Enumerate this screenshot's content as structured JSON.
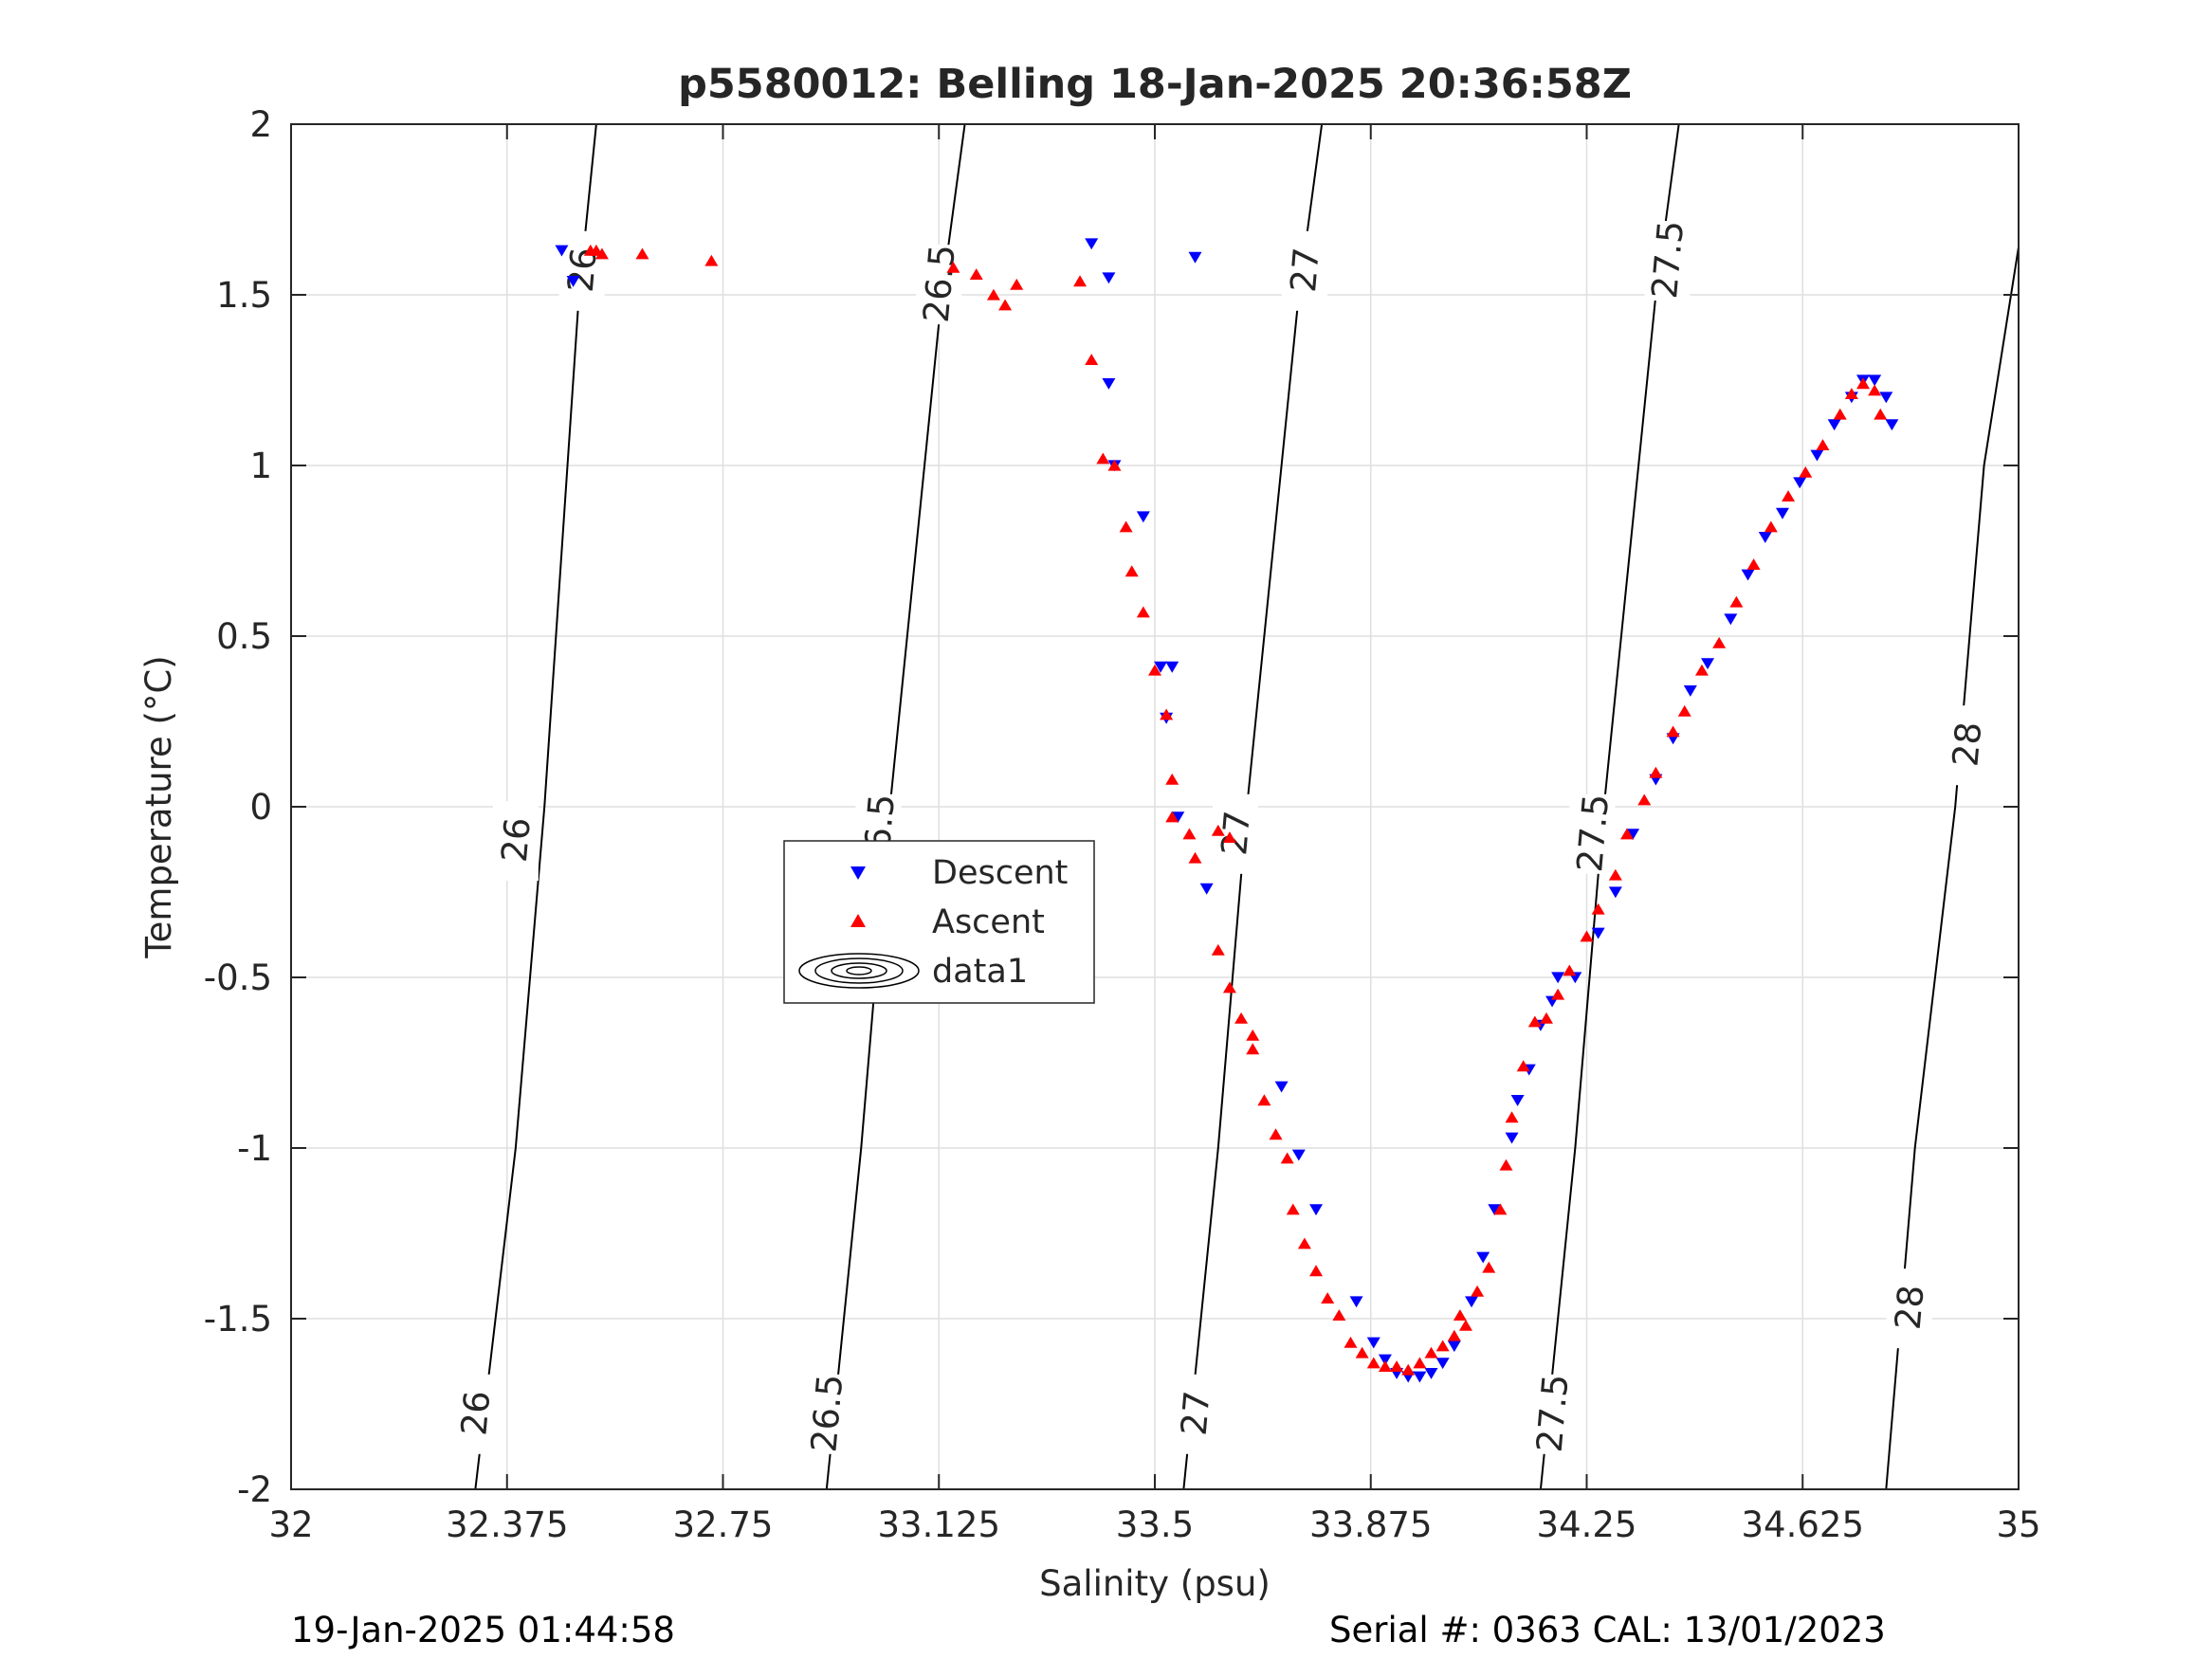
{
  "chart_data": {
    "type": "scatter",
    "title": "p5580012: Belling 18-Jan-2025 20:36:58Z",
    "xlabel": "Salinity (psu)",
    "ylabel": "Temperature (°C)",
    "xlim": [
      32,
      35
    ],
    "ylim": [
      -2,
      2
    ],
    "grid": true,
    "x_ticks": [
      32,
      32.375,
      32.75,
      33.125,
      33.5,
      33.875,
      34.25,
      34.625,
      35
    ],
    "x_tick_labels": [
      "32",
      "32.375",
      "32.75",
      "33.125",
      "33.5",
      "33.875",
      "34.25",
      "34.625",
      "35"
    ],
    "y_ticks": [
      -2,
      -1.5,
      -1,
      -0.5,
      0,
      0.5,
      1,
      1.5,
      2
    ],
    "y_tick_labels": [
      "-2",
      "-1.5",
      "-1",
      "-0.5",
      "0",
      "0.5",
      "1",
      "1.5",
      "2"
    ],
    "legend": {
      "placement": "center-left",
      "entries": [
        "Descent",
        "Ascent",
        "data1"
      ]
    },
    "contours": [
      {
        "level": "26",
        "points": [
          [
            32.53,
            2.0
          ],
          [
            32.5,
            1.5
          ],
          [
            32.44,
            0.0
          ],
          [
            32.39,
            -1.0
          ],
          [
            32.32,
            -2.0
          ]
        ],
        "labels": [
          [
            32.505,
            1.57
          ],
          [
            32.39,
            -0.1
          ],
          [
            32.32,
            -1.78
          ]
        ]
      },
      {
        "level": "26.5",
        "points": [
          [
            33.17,
            2.0
          ],
          [
            33.13,
            1.5
          ],
          [
            33.04,
            0.0
          ],
          [
            32.99,
            -1.0
          ],
          [
            32.93,
            -2.0
          ]
        ],
        "labels": [
          [
            33.125,
            1.53
          ],
          [
            33.02,
            -0.08
          ],
          [
            32.93,
            -1.78
          ]
        ]
      },
      {
        "level": "27",
        "points": [
          [
            33.79,
            2.0
          ],
          [
            33.75,
            1.5
          ],
          [
            33.66,
            0.0
          ],
          [
            33.61,
            -1.0
          ],
          [
            33.55,
            -2.0
          ]
        ],
        "labels": [
          [
            33.76,
            1.57
          ],
          [
            33.64,
            -0.08
          ],
          [
            33.57,
            -1.78
          ]
        ]
      },
      {
        "level": "27.5",
        "points": [
          [
            34.41,
            2.0
          ],
          [
            34.37,
            1.5
          ],
          [
            34.28,
            0.0
          ],
          [
            34.23,
            -1.0
          ],
          [
            34.17,
            -2.0
          ]
        ],
        "labels": [
          [
            34.39,
            1.6
          ],
          [
            34.26,
            -0.08
          ],
          [
            34.19,
            -1.78
          ]
        ]
      },
      {
        "level": "28",
        "points": [
          [
            35.0,
            1.64
          ],
          [
            34.94,
            1.0
          ],
          [
            34.89,
            0.0
          ],
          [
            34.82,
            -1.0
          ],
          [
            34.77,
            -2.0
          ]
        ],
        "labels": [
          [
            34.91,
            0.18
          ],
          [
            34.81,
            -1.47
          ]
        ]
      }
    ],
    "series": [
      {
        "name": "Descent",
        "color": "#0000ff",
        "marker": "triangle-down",
        "points": [
          [
            32.49,
            1.54
          ],
          [
            32.47,
            1.63
          ],
          [
            33.39,
            1.65
          ],
          [
            33.42,
            1.55
          ],
          [
            33.57,
            1.61
          ],
          [
            33.42,
            1.24
          ],
          [
            33.43,
            1.0
          ],
          [
            33.48,
            0.85
          ],
          [
            33.51,
            0.41
          ],
          [
            33.53,
            0.41
          ],
          [
            33.52,
            0.26
          ],
          [
            33.54,
            -0.03
          ],
          [
            33.59,
            -0.24
          ],
          [
            33.72,
            -0.82
          ],
          [
            33.75,
            -1.02
          ],
          [
            33.78,
            -1.18
          ],
          [
            33.85,
            -1.45
          ],
          [
            33.88,
            -1.57
          ],
          [
            33.9,
            -1.62
          ],
          [
            33.92,
            -1.66
          ],
          [
            33.94,
            -1.67
          ],
          [
            33.96,
            -1.67
          ],
          [
            33.98,
            -1.66
          ],
          [
            34.0,
            -1.63
          ],
          [
            34.02,
            -1.58
          ],
          [
            34.05,
            -1.45
          ],
          [
            34.07,
            -1.32
          ],
          [
            34.09,
            -1.18
          ],
          [
            34.12,
            -0.97
          ],
          [
            34.13,
            -0.86
          ],
          [
            34.15,
            -0.77
          ],
          [
            34.17,
            -0.64
          ],
          [
            34.19,
            -0.57
          ],
          [
            34.2,
            -0.5
          ],
          [
            34.23,
            -0.5
          ],
          [
            34.27,
            -0.37
          ],
          [
            34.3,
            -0.25
          ],
          [
            34.33,
            -0.08
          ],
          [
            34.37,
            0.08
          ],
          [
            34.4,
            0.2
          ],
          [
            34.43,
            0.34
          ],
          [
            34.46,
            0.42
          ],
          [
            34.5,
            0.55
          ],
          [
            34.53,
            0.68
          ],
          [
            34.56,
            0.79
          ],
          [
            34.59,
            0.86
          ],
          [
            34.62,
            0.95
          ],
          [
            34.65,
            1.03
          ],
          [
            34.68,
            1.12
          ],
          [
            34.71,
            1.2
          ],
          [
            34.73,
            1.25
          ],
          [
            34.75,
            1.25
          ],
          [
            34.77,
            1.2
          ],
          [
            34.78,
            1.12
          ]
        ]
      },
      {
        "name": "Ascent",
        "color": "#ff0000",
        "marker": "triangle-up",
        "points": [
          [
            32.52,
            1.63
          ],
          [
            32.53,
            1.63
          ],
          [
            32.54,
            1.62
          ],
          [
            32.61,
            1.62
          ],
          [
            32.73,
            1.6
          ],
          [
            33.15,
            1.58
          ],
          [
            33.19,
            1.56
          ],
          [
            33.22,
            1.5
          ],
          [
            33.24,
            1.47
          ],
          [
            33.26,
            1.53
          ],
          [
            33.37,
            1.54
          ],
          [
            33.39,
            1.31
          ],
          [
            33.41,
            1.02
          ],
          [
            33.43,
            1.0
          ],
          [
            33.45,
            0.82
          ],
          [
            33.46,
            0.69
          ],
          [
            33.48,
            0.57
          ],
          [
            33.5,
            0.4
          ],
          [
            33.52,
            0.27
          ],
          [
            33.53,
            0.08
          ],
          [
            33.53,
            -0.03
          ],
          [
            33.56,
            -0.08
          ],
          [
            33.57,
            -0.15
          ],
          [
            33.61,
            -0.07
          ],
          [
            33.63,
            -0.09
          ],
          [
            33.61,
            -0.42
          ],
          [
            33.63,
            -0.53
          ],
          [
            33.65,
            -0.62
          ],
          [
            33.67,
            -0.67
          ],
          [
            33.67,
            -0.71
          ],
          [
            33.69,
            -0.86
          ],
          [
            33.71,
            -0.96
          ],
          [
            33.73,
            -1.03
          ],
          [
            33.74,
            -1.18
          ],
          [
            33.76,
            -1.28
          ],
          [
            33.78,
            -1.36
          ],
          [
            33.8,
            -1.44
          ],
          [
            33.82,
            -1.49
          ],
          [
            33.84,
            -1.57
          ],
          [
            33.86,
            -1.6
          ],
          [
            33.88,
            -1.63
          ],
          [
            33.9,
            -1.64
          ],
          [
            33.92,
            -1.64
          ],
          [
            33.94,
            -1.65
          ],
          [
            33.96,
            -1.63
          ],
          [
            33.98,
            -1.6
          ],
          [
            34.0,
            -1.58
          ],
          [
            34.02,
            -1.55
          ],
          [
            34.03,
            -1.49
          ],
          [
            34.04,
            -1.52
          ],
          [
            34.06,
            -1.42
          ],
          [
            34.08,
            -1.35
          ],
          [
            34.1,
            -1.18
          ],
          [
            34.11,
            -1.05
          ],
          [
            34.12,
            -0.91
          ],
          [
            34.14,
            -0.76
          ],
          [
            34.16,
            -0.63
          ],
          [
            34.18,
            -0.62
          ],
          [
            34.2,
            -0.55
          ],
          [
            34.22,
            -0.48
          ],
          [
            34.25,
            -0.38
          ],
          [
            34.27,
            -0.3
          ],
          [
            34.3,
            -0.2
          ],
          [
            34.32,
            -0.08
          ],
          [
            34.35,
            0.02
          ],
          [
            34.37,
            0.1
          ],
          [
            34.4,
            0.22
          ],
          [
            34.42,
            0.28
          ],
          [
            34.45,
            0.4
          ],
          [
            34.48,
            0.48
          ],
          [
            34.51,
            0.6
          ],
          [
            34.54,
            0.71
          ],
          [
            34.57,
            0.82
          ],
          [
            34.6,
            0.91
          ],
          [
            34.63,
            0.98
          ],
          [
            34.66,
            1.06
          ],
          [
            34.69,
            1.15
          ],
          [
            34.71,
            1.21
          ],
          [
            34.73,
            1.24
          ],
          [
            34.75,
            1.22
          ],
          [
            34.76,
            1.15
          ]
        ]
      }
    ]
  },
  "footer": {
    "left": "19-Jan-2025 01:44:58",
    "right": "Serial #: 0363  CAL: 13/01/2023"
  }
}
